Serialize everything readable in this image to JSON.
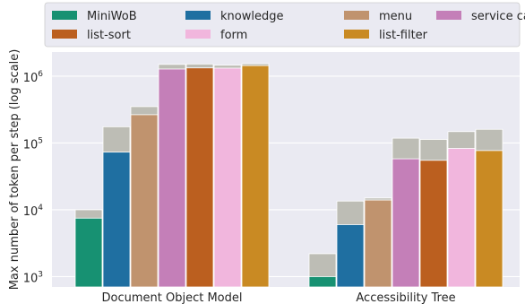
{
  "chart_data": {
    "type": "bar",
    "ylabel": "Max number of token per step (log scale)",
    "yscale": "log",
    "ylim": [
      700,
      2300000
    ],
    "yticks": [
      {
        "value": 1000,
        "base": "10",
        "exp": "3"
      },
      {
        "value": 10000,
        "base": "10",
        "exp": "4"
      },
      {
        "value": 100000,
        "base": "10",
        "exp": "5"
      },
      {
        "value": 1000000,
        "base": "10",
        "exp": "6"
      }
    ],
    "grid": true,
    "legend_position": "top",
    "categories": [
      "Document Object Model",
      "Accessibility Tree"
    ],
    "series": [
      {
        "name": "MiniWoB",
        "color": "#179172",
        "values": [
          7500,
          1000
        ],
        "max_values": [
          10000,
          2200
        ]
      },
      {
        "name": "knowledge",
        "color": "#1f6fa1",
        "values": [
          73000,
          6000
        ],
        "max_values": [
          175000,
          13500
        ]
      },
      {
        "name": "menu",
        "color": "#c0936e",
        "values": [
          265000,
          14000
        ],
        "max_values": [
          350000,
          15000
        ]
      },
      {
        "name": "service catalog",
        "color": "#c47fb8",
        "values": [
          1280000,
          58000
        ],
        "max_values": [
          1500000,
          118000
        ]
      },
      {
        "name": "list-sort",
        "color": "#bb5f1f",
        "values": [
          1330000,
          55000
        ],
        "max_values": [
          1520000,
          113000
        ]
      },
      {
        "name": "form",
        "color": "#f1b6dd",
        "values": [
          1320000,
          83000
        ],
        "max_values": [
          1460000,
          148000
        ]
      },
      {
        "name": "list-filter",
        "color": "#c98a23",
        "values": [
          1440000,
          77000
        ],
        "max_values": [
          1540000,
          160000
        ]
      }
    ]
  }
}
